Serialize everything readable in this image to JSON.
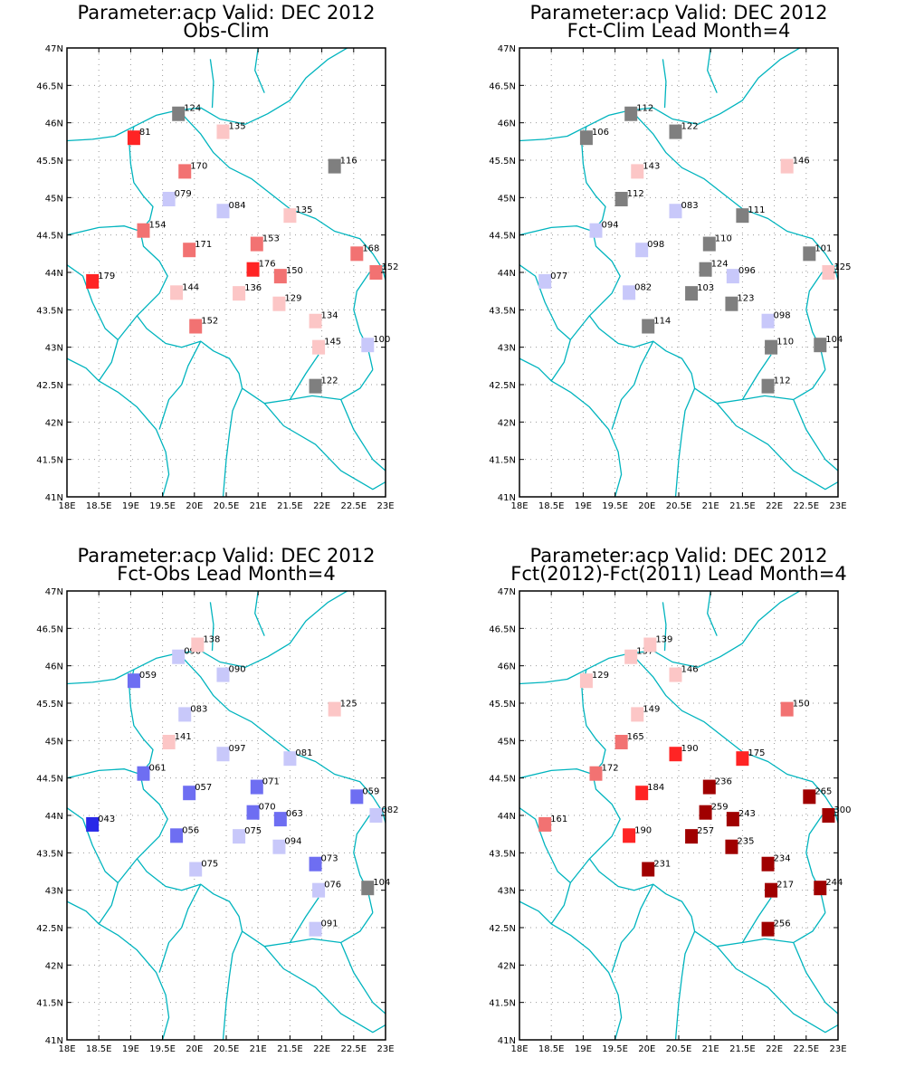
{
  "colors": {
    "coast": "#00b4be",
    "grid": "#999999",
    "frame": "#000000",
    "neutral": "#7f7f7f",
    "red_strong": "#ff2424",
    "red_mid": "#f27272",
    "red_light": "#fcc6c6",
    "blue_strong": "#2828e8",
    "blue_mid": "#6e6ef2",
    "blue_light": "#c8c8fa",
    "dark_red": "#a00000"
  },
  "axes": {
    "x_ticks": [
      "18E",
      "18.5E",
      "19E",
      "19.5E",
      "20E",
      "20.5E",
      "21E",
      "21.5E",
      "22E",
      "22.5E",
      "23E"
    ],
    "y_ticks": [
      "41N",
      "41.5N",
      "42N",
      "42.5N",
      "43N",
      "43.5N",
      "44N",
      "44.5N",
      "45N",
      "45.5N",
      "46N",
      "46.5N",
      "47N"
    ],
    "lon_range": [
      18,
      23
    ],
    "lat_range": [
      41,
      47
    ]
  },
  "chart_data": [
    {
      "type": "map",
      "title": "Parameter:acp Valid: DEC 2012",
      "subtitle": "Obs-Clim",
      "grid": true,
      "points": [
        {
          "lon": 19.75,
          "lat": 46.12,
          "label": "124",
          "color": "neutral"
        },
        {
          "lon": 20.45,
          "lat": 45.88,
          "label": "135",
          "color": "red_light"
        },
        {
          "lon": 19.05,
          "lat": 45.8,
          "label": "81",
          "color": "red_strong"
        },
        {
          "lon": 19.85,
          "lat": 45.35,
          "label": "170",
          "color": "red_mid"
        },
        {
          "lon": 22.2,
          "lat": 45.42,
          "label": "116",
          "color": "neutral"
        },
        {
          "lon": 19.6,
          "lat": 44.98,
          "label": "079",
          "color": "blue_light"
        },
        {
          "lon": 20.45,
          "lat": 44.82,
          "label": "084",
          "color": "blue_light"
        },
        {
          "lon": 21.5,
          "lat": 44.76,
          "label": "135",
          "color": "red_light"
        },
        {
          "lon": 19.2,
          "lat": 44.56,
          "label": "154",
          "color": "red_mid"
        },
        {
          "lon": 19.92,
          "lat": 44.3,
          "label": "171",
          "color": "red_mid"
        },
        {
          "lon": 20.98,
          "lat": 44.38,
          "label": "153",
          "color": "red_mid"
        },
        {
          "lon": 22.55,
          "lat": 44.25,
          "label": "168",
          "color": "red_mid"
        },
        {
          "lon": 22.85,
          "lat": 44.0,
          "label": "152",
          "color": "red_mid"
        },
        {
          "lon": 18.4,
          "lat": 43.88,
          "label": "179",
          "color": "red_strong"
        },
        {
          "lon": 20.92,
          "lat": 44.04,
          "label": "176",
          "color": "red_strong"
        },
        {
          "lon": 21.35,
          "lat": 43.95,
          "label": "150",
          "color": "red_mid"
        },
        {
          "lon": 19.72,
          "lat": 43.73,
          "label": "144",
          "color": "red_light"
        },
        {
          "lon": 20.7,
          "lat": 43.72,
          "label": "136",
          "color": "red_light"
        },
        {
          "lon": 21.33,
          "lat": 43.58,
          "label": "129",
          "color": "red_light"
        },
        {
          "lon": 21.9,
          "lat": 43.35,
          "label": "134",
          "color": "red_light"
        },
        {
          "lon": 20.02,
          "lat": 43.28,
          "label": "152",
          "color": "red_mid"
        },
        {
          "lon": 21.95,
          "lat": 43.0,
          "label": "145",
          "color": "red_light"
        },
        {
          "lon": 22.72,
          "lat": 43.03,
          "label": "100",
          "color": "blue_light"
        },
        {
          "lon": 21.9,
          "lat": 42.48,
          "label": "122",
          "color": "neutral"
        }
      ]
    },
    {
      "type": "map",
      "title": "Parameter:acp Valid: DEC 2012",
      "subtitle": "Fct-Clim Lead Month=4",
      "grid": true,
      "points": [
        {
          "lon": 19.75,
          "lat": 46.12,
          "label": "112",
          "color": "neutral"
        },
        {
          "lon": 20.45,
          "lat": 45.88,
          "label": "122",
          "color": "neutral"
        },
        {
          "lon": 19.05,
          "lat": 45.8,
          "label": "106",
          "color": "neutral"
        },
        {
          "lon": 19.85,
          "lat": 45.35,
          "label": "143",
          "color": "red_light"
        },
        {
          "lon": 22.2,
          "lat": 45.42,
          "label": "146",
          "color": "red_light"
        },
        {
          "lon": 19.6,
          "lat": 44.98,
          "label": "112",
          "color": "neutral"
        },
        {
          "lon": 20.45,
          "lat": 44.82,
          "label": "083",
          "color": "blue_light"
        },
        {
          "lon": 21.5,
          "lat": 44.76,
          "label": "111",
          "color": "neutral"
        },
        {
          "lon": 19.2,
          "lat": 44.56,
          "label": "094",
          "color": "blue_light"
        },
        {
          "lon": 19.92,
          "lat": 44.3,
          "label": "098",
          "color": "blue_light"
        },
        {
          "lon": 20.98,
          "lat": 44.38,
          "label": "110",
          "color": "neutral"
        },
        {
          "lon": 22.55,
          "lat": 44.25,
          "label": "101",
          "color": "neutral"
        },
        {
          "lon": 22.85,
          "lat": 44.0,
          "label": "125",
          "color": "red_light"
        },
        {
          "lon": 18.4,
          "lat": 43.88,
          "label": "077",
          "color": "blue_light"
        },
        {
          "lon": 20.92,
          "lat": 44.04,
          "label": "124",
          "color": "neutral"
        },
        {
          "lon": 21.35,
          "lat": 43.95,
          "label": "096",
          "color": "blue_light"
        },
        {
          "lon": 19.72,
          "lat": 43.73,
          "label": "082",
          "color": "blue_light"
        },
        {
          "lon": 20.7,
          "lat": 43.72,
          "label": "103",
          "color": "neutral"
        },
        {
          "lon": 21.33,
          "lat": 43.58,
          "label": "123",
          "color": "neutral"
        },
        {
          "lon": 21.9,
          "lat": 43.35,
          "label": "098",
          "color": "blue_light"
        },
        {
          "lon": 20.02,
          "lat": 43.28,
          "label": "114",
          "color": "neutral"
        },
        {
          "lon": 21.95,
          "lat": 43.0,
          "label": "110",
          "color": "neutral"
        },
        {
          "lon": 22.72,
          "lat": 43.03,
          "label": "104",
          "color": "neutral"
        },
        {
          "lon": 21.9,
          "lat": 42.48,
          "label": "112",
          "color": "neutral"
        }
      ]
    },
    {
      "type": "map",
      "title": "Parameter:acp Valid: DEC 2012",
      "subtitle": "Fct-Obs Lead Month=4",
      "grid": true,
      "points": [
        {
          "lon": 19.75,
          "lat": 46.12,
          "label": "090",
          "color": "blue_light"
        },
        {
          "lon": 20.05,
          "lat": 46.28,
          "label": "138",
          "color": "red_light"
        },
        {
          "lon": 20.45,
          "lat": 45.88,
          "label": "090",
          "color": "blue_light"
        },
        {
          "lon": 19.05,
          "lat": 45.8,
          "label": "059",
          "color": "blue_mid"
        },
        {
          "lon": 19.85,
          "lat": 45.35,
          "label": "083",
          "color": "blue_light"
        },
        {
          "lon": 22.2,
          "lat": 45.42,
          "label": "125",
          "color": "red_light"
        },
        {
          "lon": 19.6,
          "lat": 44.98,
          "label": "141",
          "color": "red_light"
        },
        {
          "lon": 20.45,
          "lat": 44.82,
          "label": "097",
          "color": "blue_light"
        },
        {
          "lon": 21.5,
          "lat": 44.76,
          "label": "081",
          "color": "blue_light"
        },
        {
          "lon": 19.2,
          "lat": 44.56,
          "label": "061",
          "color": "blue_mid"
        },
        {
          "lon": 19.92,
          "lat": 44.3,
          "label": "057",
          "color": "blue_mid"
        },
        {
          "lon": 20.98,
          "lat": 44.38,
          "label": "071",
          "color": "blue_mid"
        },
        {
          "lon": 22.55,
          "lat": 44.25,
          "label": "059",
          "color": "blue_mid"
        },
        {
          "lon": 22.85,
          "lat": 44.0,
          "label": "082",
          "color": "blue_light"
        },
        {
          "lon": 18.4,
          "lat": 43.88,
          "label": "043",
          "color": "blue_strong"
        },
        {
          "lon": 20.92,
          "lat": 44.04,
          "label": "070",
          "color": "blue_mid"
        },
        {
          "lon": 21.35,
          "lat": 43.95,
          "label": "063",
          "color": "blue_mid"
        },
        {
          "lon": 19.72,
          "lat": 43.73,
          "label": "056",
          "color": "blue_mid"
        },
        {
          "lon": 20.7,
          "lat": 43.72,
          "label": "075",
          "color": "blue_light"
        },
        {
          "lon": 21.33,
          "lat": 43.58,
          "label": "094",
          "color": "blue_light"
        },
        {
          "lon": 21.9,
          "lat": 43.35,
          "label": "073",
          "color": "blue_mid"
        },
        {
          "lon": 20.02,
          "lat": 43.28,
          "label": "075",
          "color": "blue_light"
        },
        {
          "lon": 21.95,
          "lat": 43.0,
          "label": "076",
          "color": "blue_light"
        },
        {
          "lon": 22.72,
          "lat": 43.03,
          "label": "104",
          "color": "neutral"
        },
        {
          "lon": 21.9,
          "lat": 42.48,
          "label": "091",
          "color": "blue_light"
        }
      ]
    },
    {
      "type": "map",
      "title": "Parameter:acp Valid: DEC 2012",
      "subtitle": "Fct(2012)-Fct(2011) Lead Month=4",
      "grid": true,
      "points": [
        {
          "lon": 19.75,
          "lat": 46.12,
          "label": "137",
          "color": "red_light"
        },
        {
          "lon": 20.05,
          "lat": 46.28,
          "label": "139",
          "color": "red_light"
        },
        {
          "lon": 20.45,
          "lat": 45.88,
          "label": "146",
          "color": "red_light"
        },
        {
          "lon": 19.05,
          "lat": 45.8,
          "label": "129",
          "color": "red_light"
        },
        {
          "lon": 19.85,
          "lat": 45.35,
          "label": "149",
          "color": "red_light"
        },
        {
          "lon": 22.2,
          "lat": 45.42,
          "label": "150",
          "color": "red_mid"
        },
        {
          "lon": 19.6,
          "lat": 44.98,
          "label": "165",
          "color": "red_mid"
        },
        {
          "lon": 20.45,
          "lat": 44.82,
          "label": "190",
          "color": "red_strong"
        },
        {
          "lon": 21.5,
          "lat": 44.76,
          "label": "175",
          "color": "red_strong"
        },
        {
          "lon": 19.2,
          "lat": 44.56,
          "label": "172",
          "color": "red_mid"
        },
        {
          "lon": 19.92,
          "lat": 44.3,
          "label": "184",
          "color": "red_strong"
        },
        {
          "lon": 20.98,
          "lat": 44.38,
          "label": "236",
          "color": "dark_red"
        },
        {
          "lon": 22.55,
          "lat": 44.25,
          "label": "265",
          "color": "dark_red"
        },
        {
          "lon": 22.85,
          "lat": 44.0,
          "label": "300",
          "color": "dark_red"
        },
        {
          "lon": 18.4,
          "lat": 43.88,
          "label": "161",
          "color": "red_mid"
        },
        {
          "lon": 20.92,
          "lat": 44.04,
          "label": "259",
          "color": "dark_red"
        },
        {
          "lon": 21.35,
          "lat": 43.95,
          "label": "243",
          "color": "dark_red"
        },
        {
          "lon": 19.72,
          "lat": 43.73,
          "label": "190",
          "color": "red_strong"
        },
        {
          "lon": 20.7,
          "lat": 43.72,
          "label": "257",
          "color": "dark_red"
        },
        {
          "lon": 21.33,
          "lat": 43.58,
          "label": "235",
          "color": "dark_red"
        },
        {
          "lon": 21.9,
          "lat": 43.35,
          "label": "234",
          "color": "dark_red"
        },
        {
          "lon": 20.02,
          "lat": 43.28,
          "label": "231",
          "color": "dark_red"
        },
        {
          "lon": 21.95,
          "lat": 43.0,
          "label": "217",
          "color": "dark_red"
        },
        {
          "lon": 22.72,
          "lat": 43.03,
          "label": "244",
          "color": "dark_red"
        },
        {
          "lon": 21.9,
          "lat": 42.48,
          "label": "256",
          "color": "dark_red"
        }
      ]
    }
  ]
}
